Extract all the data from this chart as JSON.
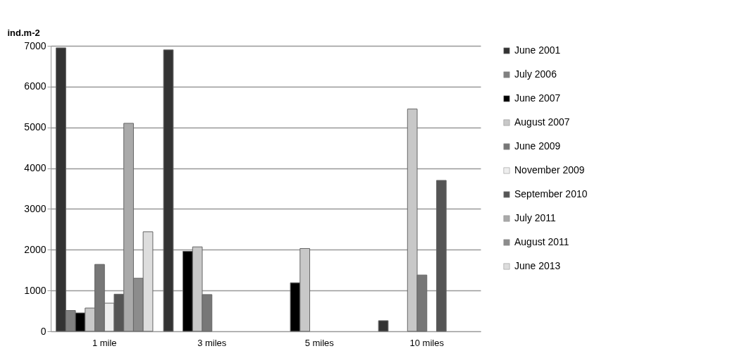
{
  "chart_data": {
    "type": "bar",
    "ylabel": "ind.m-2",
    "categories": [
      "1 mile",
      "3 miles",
      "5 miles",
      "10 miles"
    ],
    "series": [
      {
        "name": "June 2001",
        "color": "#333333",
        "values": [
          6950,
          6900,
          null,
          260
        ]
      },
      {
        "name": "July 2006",
        "color": "#808080",
        "values": [
          510,
          null,
          null,
          null
        ]
      },
      {
        "name": "June 2007",
        "color": "#000000",
        "values": [
          450,
          1960,
          1190,
          null
        ]
      },
      {
        "name": "August 2007",
        "color": "#c8c8c8",
        "values": [
          570,
          2070,
          2030,
          5450
        ]
      },
      {
        "name": "June 2009",
        "color": "#777777",
        "values": [
          1640,
          900,
          null,
          1380
        ]
      },
      {
        "name": "November 2009",
        "color": "#eeeeee",
        "values": [
          690,
          null,
          null,
          null
        ]
      },
      {
        "name": "September 2010",
        "color": "#555555",
        "values": [
          910,
          null,
          null,
          3700
        ]
      },
      {
        "name": "July 2011",
        "color": "#aaaaaa",
        "values": [
          5100,
          null,
          null,
          null
        ]
      },
      {
        "name": "August 2011",
        "color": "#8c8c8c",
        "values": [
          1300,
          null,
          null,
          null
        ]
      },
      {
        "name": "June 2013",
        "color": "#dddddd",
        "values": [
          2440,
          null,
          null,
          null
        ]
      }
    ],
    "ylim": [
      0,
      7000
    ],
    "yticks": [
      0,
      1000,
      2000,
      3000,
      4000,
      5000,
      6000,
      7000
    ],
    "grid": "y",
    "legend": "right"
  }
}
